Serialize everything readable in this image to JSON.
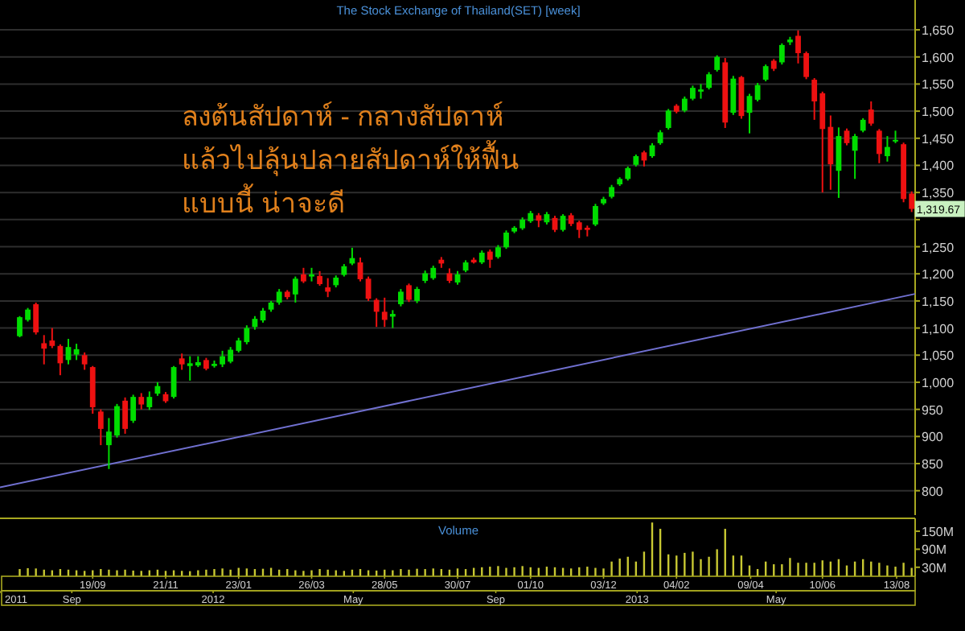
{
  "chart_data": [
    {
      "type": "candlestick",
      "title": "The Stock Exchange of Thailand(SET) [week]",
      "x": [
        "2011-07-18",
        "2011-07-25",
        "2011-08-01",
        "2011-08-08",
        "2011-08-15",
        "2011-08-22",
        "2011-08-29",
        "2011-09-05",
        "2011-09-12",
        "2011-09-19",
        "2011-09-26",
        "2011-10-03",
        "2011-10-10",
        "2011-10-17",
        "2011-10-24",
        "2011-10-31",
        "2011-11-07",
        "2011-11-14",
        "2011-11-21",
        "2011-11-28",
        "2011-12-05",
        "2011-12-12",
        "2011-12-19",
        "2011-12-26",
        "2012-01-02",
        "2012-01-09",
        "2012-01-16",
        "2012-01-23",
        "2012-01-30",
        "2012-02-06",
        "2012-02-13",
        "2012-02-20",
        "2012-02-27",
        "2012-03-05",
        "2012-03-12",
        "2012-03-19",
        "2012-03-26",
        "2012-04-02",
        "2012-04-09",
        "2012-04-16",
        "2012-04-23",
        "2012-04-30",
        "2012-05-07",
        "2012-05-14",
        "2012-05-21",
        "2012-05-28",
        "2012-06-04",
        "2012-06-11",
        "2012-06-18",
        "2012-06-25",
        "2012-07-02",
        "2012-07-09",
        "2012-07-16",
        "2012-07-23",
        "2012-07-30",
        "2012-08-06",
        "2012-08-13",
        "2012-08-20",
        "2012-08-27",
        "2012-09-03",
        "2012-09-10",
        "2012-09-17",
        "2012-09-24",
        "2012-10-01",
        "2012-10-08",
        "2012-10-15",
        "2012-10-22",
        "2012-10-29",
        "2012-11-05",
        "2012-11-12",
        "2012-11-19",
        "2012-11-26",
        "2012-12-03",
        "2012-12-10",
        "2012-12-17",
        "2012-12-24",
        "2012-12-31",
        "2013-01-07",
        "2013-01-14",
        "2013-01-21",
        "2013-01-28",
        "2013-02-04",
        "2013-02-11",
        "2013-02-18",
        "2013-02-25",
        "2013-03-04",
        "2013-03-11",
        "2013-03-18",
        "2013-03-25",
        "2013-04-01",
        "2013-04-08",
        "2013-04-15",
        "2013-04-22",
        "2013-04-29",
        "2013-05-06",
        "2013-05-13",
        "2013-05-20",
        "2013-05-27",
        "2013-06-03",
        "2013-06-10",
        "2013-06-17",
        "2013-06-24",
        "2013-07-01",
        "2013-07-08",
        "2013-07-15",
        "2013-07-22",
        "2013-07-29",
        "2013-08-05",
        "2013-08-12",
        "2013-08-19",
        "2013-08-26"
      ],
      "ohlc": [
        [
          1085,
          1122,
          1083,
          1120
        ],
        [
          1115,
          1137,
          1112,
          1134
        ],
        [
          1144,
          1147,
          1088,
          1092
        ],
        [
          1072,
          1087,
          1033,
          1062
        ],
        [
          1077,
          1100,
          1063,
          1067
        ],
        [
          1067,
          1070,
          1013,
          1035
        ],
        [
          1041,
          1080,
          1033,
          1065
        ],
        [
          1051,
          1071,
          1041,
          1061
        ],
        [
          1050,
          1055,
          1023,
          1033
        ],
        [
          1028,
          1030,
          942,
          954
        ],
        [
          946,
          950,
          884,
          914
        ],
        [
          884,
          934,
          840,
          909
        ],
        [
          902,
          960,
          898,
          956
        ],
        [
          966,
          972,
          905,
          914
        ],
        [
          929,
          977,
          925,
          973
        ],
        [
          973,
          980,
          950,
          959
        ],
        [
          954,
          983,
          949,
          973
        ],
        [
          979,
          1000,
          975,
          993
        ],
        [
          978,
          982,
          962,
          965
        ],
        [
          973,
          1030,
          970,
          1028
        ],
        [
          1044,
          1053,
          1023,
          1033
        ],
        [
          1030,
          1048,
          1003,
          1035
        ],
        [
          1031,
          1048,
          1028,
          1037
        ],
        [
          1041,
          1045,
          1022,
          1025
        ],
        [
          1030,
          1040,
          1027,
          1034
        ],
        [
          1033,
          1058,
          1028,
          1048
        ],
        [
          1038,
          1065,
          1035,
          1060
        ],
        [
          1058,
          1082,
          1055,
          1077
        ],
        [
          1074,
          1105,
          1070,
          1100
        ],
        [
          1102,
          1122,
          1097,
          1117
        ],
        [
          1114,
          1137,
          1110,
          1132
        ],
        [
          1134,
          1150,
          1130,
          1147
        ],
        [
          1147,
          1172,
          1143,
          1167
        ],
        [
          1167,
          1170,
          1153,
          1157
        ],
        [
          1162,
          1195,
          1147,
          1191
        ],
        [
          1199,
          1211,
          1183,
          1186
        ],
        [
          1195,
          1211,
          1186,
          1199
        ],
        [
          1196,
          1205,
          1178,
          1181
        ],
        [
          1175,
          1192,
          1157,
          1167
        ],
        [
          1179,
          1197,
          1175,
          1193
        ],
        [
          1198,
          1218,
          1195,
          1214
        ],
        [
          1219,
          1248,
          1216,
          1229
        ],
        [
          1221,
          1230,
          1186,
          1190
        ],
        [
          1191,
          1195,
          1150,
          1154
        ],
        [
          1152,
          1155,
          1102,
          1130
        ],
        [
          1130,
          1156,
          1102,
          1115
        ],
        [
          1121,
          1133,
          1100,
          1126
        ],
        [
          1144,
          1172,
          1140,
          1167
        ],
        [
          1179,
          1182,
          1148,
          1152
        ],
        [
          1150,
          1176,
          1146,
          1172
        ],
        [
          1187,
          1206,
          1183,
          1201
        ],
        [
          1192,
          1215,
          1189,
          1211
        ],
        [
          1226,
          1231,
          1211,
          1219
        ],
        [
          1201,
          1210,
          1183,
          1187
        ],
        [
          1184,
          1205,
          1180,
          1199
        ],
        [
          1206,
          1225,
          1203,
          1221
        ],
        [
          1226,
          1230,
          1219,
          1221
        ],
        [
          1221,
          1243,
          1218,
          1239
        ],
        [
          1241,
          1245,
          1211,
          1226
        ],
        [
          1231,
          1253,
          1228,
          1249
        ],
        [
          1249,
          1280,
          1246,
          1276
        ],
        [
          1278,
          1288,
          1275,
          1285
        ],
        [
          1284,
          1304,
          1281,
          1300
        ],
        [
          1297,
          1316,
          1294,
          1312
        ],
        [
          1308,
          1312,
          1286,
          1298
        ],
        [
          1295,
          1314,
          1291,
          1310
        ],
        [
          1303,
          1307,
          1277,
          1281
        ],
        [
          1281,
          1310,
          1278,
          1307
        ],
        [
          1308,
          1312,
          1288,
          1292
        ],
        [
          1295,
          1298,
          1266,
          1281
        ],
        [
          1285,
          1289,
          1269,
          1281
        ],
        [
          1291,
          1329,
          1288,
          1325
        ],
        [
          1330,
          1342,
          1327,
          1338
        ],
        [
          1342,
          1364,
          1339,
          1360
        ],
        [
          1365,
          1378,
          1362,
          1375
        ],
        [
          1375,
          1398,
          1372,
          1395
        ],
        [
          1401,
          1420,
          1398,
          1417
        ],
        [
          1424,
          1427,
          1398,
          1409
        ],
        [
          1417,
          1441,
          1414,
          1437
        ],
        [
          1441,
          1465,
          1438,
          1461
        ],
        [
          1469,
          1504,
          1466,
          1501
        ],
        [
          1510,
          1513,
          1496,
          1499
        ],
        [
          1501,
          1527,
          1498,
          1523
        ],
        [
          1523,
          1547,
          1520,
          1543
        ],
        [
          1536,
          1550,
          1523,
          1540
        ],
        [
          1543,
          1572,
          1540,
          1568
        ],
        [
          1576,
          1603,
          1573,
          1600
        ],
        [
          1590,
          1598,
          1469,
          1479
        ],
        [
          1497,
          1565,
          1493,
          1560
        ],
        [
          1563,
          1565,
          1486,
          1491
        ],
        [
          1497,
          1532,
          1459,
          1528
        ],
        [
          1521,
          1552,
          1518,
          1548
        ],
        [
          1558,
          1586,
          1555,
          1583
        ],
        [
          1593,
          1596,
          1574,
          1578
        ],
        [
          1590,
          1625,
          1586,
          1622
        ],
        [
          1627,
          1637,
          1622,
          1632
        ],
        [
          1639,
          1649,
          1588,
          1607
        ],
        [
          1607,
          1610,
          1559,
          1563
        ],
        [
          1558,
          1561,
          1484,
          1518
        ],
        [
          1533,
          1536,
          1350,
          1467
        ],
        [
          1471,
          1492,
          1355,
          1402
        ],
        [
          1390,
          1470,
          1340,
          1454
        ],
        [
          1464,
          1468,
          1437,
          1441
        ],
        [
          1427,
          1458,
          1375,
          1454
        ],
        [
          1464,
          1487,
          1461,
          1484
        ],
        [
          1503,
          1518,
          1473,
          1477
        ],
        [
          1464,
          1467,
          1404,
          1421
        ],
        [
          1417,
          1454,
          1407,
          1434
        ],
        [
          1444,
          1464,
          1441,
          1447
        ],
        [
          1439,
          1442,
          1332,
          1338
        ],
        [
          1348,
          1352,
          1314,
          1319.67
        ]
      ],
      "series": [
        {
          "type": "line",
          "x": [
            "2011-07-01",
            "2013-08-29"
          ],
          "values": [
            806,
            1163
          ],
          "color": "#7070d0"
        }
      ],
      "xlim": [
        "2011-07-01",
        "2013-08-29"
      ],
      "ylim": [
        755,
        1705
      ],
      "yticks": [
        {
          "value": 800,
          "label": "800"
        },
        {
          "value": 850,
          "label": "850"
        },
        {
          "value": 900,
          "label": "900"
        },
        {
          "value": 950,
          "label": "950"
        },
        {
          "value": 1000,
          "label": "1,000"
        },
        {
          "value": 1050,
          "label": "1,050"
        },
        {
          "value": 1100,
          "label": "1,100"
        },
        {
          "value": 1150,
          "label": "1,150"
        },
        {
          "value": 1200,
          "label": "1,200"
        },
        {
          "value": 1250,
          "label": "1,250"
        },
        {
          "value": 1300,
          "label": null
        },
        {
          "value": 1350,
          "label": "1,350"
        },
        {
          "value": 1400,
          "label": "1,400"
        },
        {
          "value": 1450,
          "label": "1,450"
        },
        {
          "value": 1500,
          "label": "1,500"
        },
        {
          "value": 1550,
          "label": "1,550"
        },
        {
          "value": 1600,
          "label": "1,600"
        },
        {
          "value": 1650,
          "label": "1,650"
        }
      ],
      "grid": "y",
      "tick_labels": "y",
      "annotations": [
        "ลงต้นสัปดาห์ - กลางสัปดาห์",
        "แล้วไปลุ้นปลายสัปดาห์ให้ฟื้น",
        "แบบนี้ น่าจะดี",
        {
          "text": "1,319.67",
          "x": "2013-08-26",
          "y": 1319.67
        }
      ]
    },
    {
      "type": "bar",
      "title": "Volume",
      "color": "#c8c832",
      "x": [
        "2011-07-18",
        "2011-07-25",
        "2011-08-01",
        "2011-08-08",
        "2011-08-15",
        "2011-08-22",
        "2011-08-29",
        "2011-09-05",
        "2011-09-12",
        "2011-09-19",
        "2011-09-26",
        "2011-10-03",
        "2011-10-10",
        "2011-10-17",
        "2011-10-24",
        "2011-10-31",
        "2011-11-07",
        "2011-11-14",
        "2011-11-21",
        "2011-11-28",
        "2011-12-05",
        "2011-12-12",
        "2011-12-19",
        "2011-12-26",
        "2012-01-02",
        "2012-01-09",
        "2012-01-16",
        "2012-01-23",
        "2012-01-30",
        "2012-02-06",
        "2012-02-13",
        "2012-02-20",
        "2012-02-27",
        "2012-03-05",
        "2012-03-12",
        "2012-03-19",
        "2012-03-26",
        "2012-04-02",
        "2012-04-09",
        "2012-04-16",
        "2012-04-23",
        "2012-04-30",
        "2012-05-07",
        "2012-05-14",
        "2012-05-21",
        "2012-05-28",
        "2012-06-04",
        "2012-06-11",
        "2012-06-18",
        "2012-06-25",
        "2012-07-02",
        "2012-07-09",
        "2012-07-16",
        "2012-07-23",
        "2012-07-30",
        "2012-08-06",
        "2012-08-13",
        "2012-08-20",
        "2012-08-27",
        "2012-09-03",
        "2012-09-10",
        "2012-09-17",
        "2012-09-24",
        "2012-10-01",
        "2012-10-08",
        "2012-10-15",
        "2012-10-22",
        "2012-10-29",
        "2012-11-05",
        "2012-11-12",
        "2012-11-19",
        "2012-11-26",
        "2012-12-03",
        "2012-12-10",
        "2012-12-17",
        "2012-12-24",
        "2012-12-31",
        "2013-01-07",
        "2013-01-14",
        "2013-01-21",
        "2013-01-28",
        "2013-02-04",
        "2013-02-11",
        "2013-02-18",
        "2013-02-25",
        "2013-03-04",
        "2013-03-11",
        "2013-03-18",
        "2013-03-25",
        "2013-04-01",
        "2013-04-08",
        "2013-04-15",
        "2013-04-22",
        "2013-04-29",
        "2013-05-06",
        "2013-05-13",
        "2013-05-20",
        "2013-05-27",
        "2013-06-03",
        "2013-06-10",
        "2013-06-17",
        "2013-06-24",
        "2013-07-01",
        "2013-07-08",
        "2013-07-15",
        "2013-07-22",
        "2013-07-29",
        "2013-08-05",
        "2013-08-12",
        "2013-08-19",
        "2013-08-26"
      ],
      "values": [
        24,
        27,
        26,
        22,
        20,
        24,
        22,
        20,
        18,
        20,
        24,
        22,
        20,
        22,
        19,
        18,
        20,
        22,
        18,
        20,
        18,
        17,
        20,
        22,
        24,
        26,
        22,
        28,
        26,
        24,
        25,
        28,
        22,
        24,
        20,
        18,
        20,
        24,
        22,
        20,
        18,
        22,
        24,
        20,
        19,
        22,
        20,
        24,
        22,
        25,
        24,
        26,
        24,
        22,
        26,
        24,
        28,
        30,
        32,
        34,
        28,
        30,
        34,
        30,
        28,
        32,
        30,
        28,
        26,
        30,
        32,
        28,
        26,
        49,
        59,
        65,
        49,
        82,
        179,
        158,
        73,
        69,
        78,
        82,
        57,
        65,
        90,
        158,
        69,
        69,
        36,
        24,
        49,
        40,
        40,
        61,
        45,
        45,
        45,
        53,
        49,
        57,
        36,
        49,
        57,
        49,
        45,
        36,
        32,
        45,
        28
      ],
      "xlim": [
        "2011-07-01",
        "2013-08-29"
      ],
      "ylim": [
        0,
        193
      ],
      "yticks": [
        {
          "value": 30,
          "label": "30M"
        },
        {
          "value": 90,
          "label": "90M"
        },
        {
          "value": 150,
          "label": "150M"
        }
      ],
      "xticks": [
        {
          "value": "2011-09-19",
          "label": "19/09"
        },
        {
          "value": "2011-11-21",
          "label": "21/11"
        },
        {
          "value": "2012-01-23",
          "label": "23/01"
        },
        {
          "value": "2012-03-26",
          "label": "26/03"
        },
        {
          "value": "2012-05-28",
          "label": "28/05"
        },
        {
          "value": "2012-07-30",
          "label": "30/07"
        },
        {
          "value": "2012-10-01",
          "label": "01/10"
        },
        {
          "value": "2012-12-03",
          "label": "03/12"
        },
        {
          "value": "2013-02-04",
          "label": "04/02"
        },
        {
          "value": "2013-04-09",
          "label": "09/04"
        },
        {
          "value": "2013-06-10",
          "label": "10/06"
        },
        {
          "value": "2013-08-13",
          "label": "13/08"
        }
      ],
      "x2lim": [
        "2011-07-01",
        "2013-08-29"
      ],
      "x2ticks": [
        {
          "value": "2011-07",
          "label": "2011"
        },
        {
          "value": "2011-09",
          "label": "Sep"
        },
        {
          "value": "2012-01",
          "label": "2012"
        },
        {
          "value": "2012-05",
          "label": "May"
        },
        {
          "value": "2012-09",
          "label": "Sep"
        },
        {
          "value": "2013-01",
          "label": "2013"
        },
        {
          "value": "2013-05",
          "label": "May"
        }
      ]
    }
  ]
}
